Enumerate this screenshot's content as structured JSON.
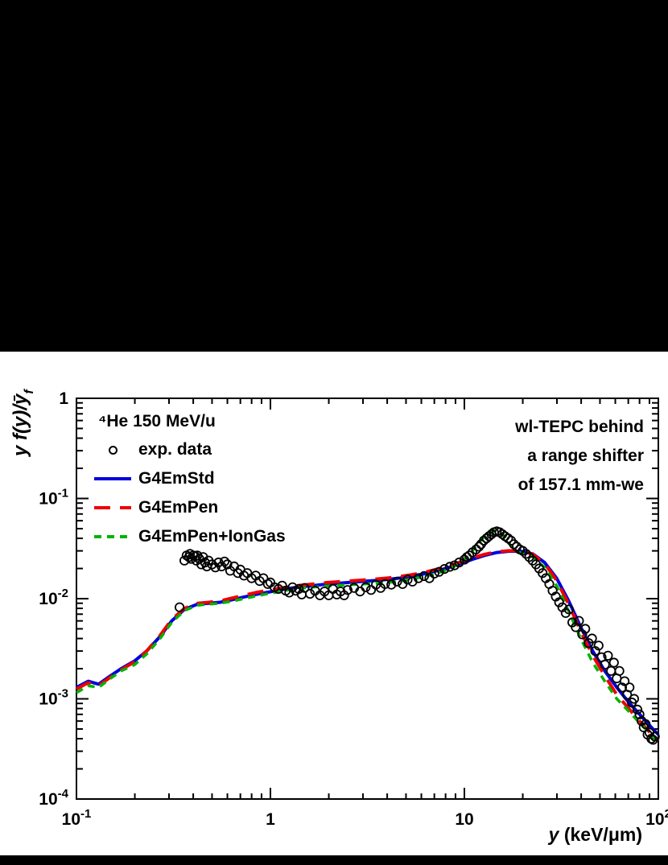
{
  "figure": {
    "background": "#000000",
    "panel_background": "#ffffff",
    "frame_color": "#000000"
  },
  "chart_data": {
    "type": "line",
    "title": "",
    "xlabel_var": "y",
    "xlabel_rest": " (keV/μm)",
    "ylabel": "y f(y)/ȳ",
    "ylabel_sub": "f",
    "xscale": "log",
    "yscale": "log",
    "xlim": [
      0.1,
      100
    ],
    "ylim": [
      0.0001,
      1
    ],
    "grid": false,
    "legend_position": "top-left-inside",
    "xticks": [
      {
        "v": 0.1,
        "label": "10^-1"
      },
      {
        "v": 1,
        "label": "1"
      },
      {
        "v": 10,
        "label": "10"
      },
      {
        "v": 100,
        "label": "10^2"
      }
    ],
    "yticks": [
      {
        "v": 1,
        "label": "1"
      },
      {
        "v": 0.1,
        "label": "10^-1"
      },
      {
        "v": 0.01,
        "label": "10^-2"
      },
      {
        "v": 0.001,
        "label": "10^-3"
      },
      {
        "v": 0.0001,
        "label": "10^-4"
      }
    ],
    "annotations": {
      "title_left": "⁴He 150 MeV/u",
      "right": [
        "wl-TEPC behind",
        "a range shifter",
        "of 157.1 mm-we"
      ]
    },
    "series": [
      {
        "name": "exp. data",
        "type": "scatter",
        "marker": "open-circle",
        "color": "#000000",
        "points": [
          [
            0.34,
            0.0082
          ],
          [
            0.36,
            0.024
          ],
          [
            0.37,
            0.027
          ],
          [
            0.38,
            0.026
          ],
          [
            0.385,
            0.028
          ],
          [
            0.39,
            0.025
          ],
          [
            0.4,
            0.027
          ],
          [
            0.41,
            0.0265
          ],
          [
            0.415,
            0.024
          ],
          [
            0.42,
            0.027
          ],
          [
            0.43,
            0.025
          ],
          [
            0.44,
            0.022
          ],
          [
            0.45,
            0.026
          ],
          [
            0.46,
            0.023
          ],
          [
            0.47,
            0.021
          ],
          [
            0.48,
            0.024
          ],
          [
            0.5,
            0.022
          ],
          [
            0.52,
            0.0205
          ],
          [
            0.54,
            0.023
          ],
          [
            0.56,
            0.021
          ],
          [
            0.58,
            0.0235
          ],
          [
            0.6,
            0.022
          ],
          [
            0.62,
            0.019
          ],
          [
            0.65,
            0.021
          ],
          [
            0.68,
            0.018
          ],
          [
            0.7,
            0.0195
          ],
          [
            0.73,
            0.017
          ],
          [
            0.76,
            0.018
          ],
          [
            0.8,
            0.016
          ],
          [
            0.84,
            0.017
          ],
          [
            0.88,
            0.015
          ],
          [
            0.92,
            0.016
          ],
          [
            0.97,
            0.014
          ],
          [
            1.0,
            0.0145
          ],
          [
            1.05,
            0.013
          ],
          [
            1.1,
            0.0125
          ],
          [
            1.15,
            0.0135
          ],
          [
            1.2,
            0.012
          ],
          [
            1.25,
            0.0115
          ],
          [
            1.3,
            0.013
          ],
          [
            1.35,
            0.012
          ],
          [
            1.4,
            0.0125
          ],
          [
            1.45,
            0.011
          ],
          [
            1.5,
            0.0128
          ],
          [
            1.6,
            0.0112
          ],
          [
            1.7,
            0.012
          ],
          [
            1.8,
            0.0108
          ],
          [
            1.9,
            0.0118
          ],
          [
            2.0,
            0.0108
          ],
          [
            2.1,
            0.0125
          ],
          [
            2.2,
            0.011
          ],
          [
            2.3,
            0.0118
          ],
          [
            2.4,
            0.0108
          ],
          [
            2.5,
            0.0122
          ],
          [
            2.7,
            0.0128
          ],
          [
            2.9,
            0.0118
          ],
          [
            3.1,
            0.013
          ],
          [
            3.3,
            0.0122
          ],
          [
            3.5,
            0.0138
          ],
          [
            3.7,
            0.0128
          ],
          [
            3.9,
            0.014
          ],
          [
            4.2,
            0.0138
          ],
          [
            4.5,
            0.0148
          ],
          [
            4.8,
            0.014
          ],
          [
            5.1,
            0.0155
          ],
          [
            5.4,
            0.0148
          ],
          [
            5.8,
            0.016
          ],
          [
            6.2,
            0.0168
          ],
          [
            6.6,
            0.016
          ],
          [
            7.0,
            0.0178
          ],
          [
            7.4,
            0.0185
          ],
          [
            7.9,
            0.0198
          ],
          [
            8.4,
            0.0208
          ],
          [
            8.9,
            0.0215
          ],
          [
            9.4,
            0.023
          ],
          [
            10.0,
            0.0245
          ],
          [
            10.3,
            0.026
          ],
          [
            10.6,
            0.027
          ],
          [
            11.0,
            0.029
          ],
          [
            11.5,
            0.031
          ],
          [
            11.9,
            0.033
          ],
          [
            12.2,
            0.035
          ],
          [
            12.6,
            0.038
          ],
          [
            13.0,
            0.04
          ],
          [
            13.4,
            0.042
          ],
          [
            13.8,
            0.044
          ],
          [
            14.2,
            0.046
          ],
          [
            14.7,
            0.047
          ],
          [
            15.2,
            0.046
          ],
          [
            15.7,
            0.044
          ],
          [
            16.2,
            0.042
          ],
          [
            16.8,
            0.04
          ],
          [
            17.4,
            0.038
          ],
          [
            18.0,
            0.035
          ],
          [
            18.6,
            0.033
          ],
          [
            19.3,
            0.031
          ],
          [
            20.0,
            0.03
          ],
          [
            20.8,
            0.028
          ],
          [
            21.6,
            0.026
          ],
          [
            22.5,
            0.024
          ],
          [
            23.4,
            0.022
          ],
          [
            24.3,
            0.02
          ],
          [
            25.3,
            0.018
          ],
          [
            26.3,
            0.016
          ],
          [
            27.4,
            0.014
          ],
          [
            28.5,
            0.012
          ],
          [
            29.6,
            0.0105
          ],
          [
            30.8,
            0.0092
          ],
          [
            32,
            0.0082
          ],
          [
            33.3,
            0.0072
          ],
          [
            34.6,
            0.0078
          ],
          [
            36,
            0.0058
          ],
          [
            37.5,
            0.0052
          ],
          [
            39,
            0.006
          ],
          [
            40.5,
            0.0044
          ],
          [
            42,
            0.005
          ],
          [
            43.7,
            0.0036
          ],
          [
            45.5,
            0.004
          ],
          [
            47.3,
            0.003
          ],
          [
            49.2,
            0.0034
          ],
          [
            51,
            0.0026
          ],
          [
            53,
            0.0022
          ],
          [
            55,
            0.0027
          ],
          [
            57,
            0.0019
          ],
          [
            59,
            0.0023
          ],
          [
            61,
            0.0016
          ],
          [
            63,
            0.0019
          ],
          [
            65,
            0.0013
          ],
          [
            67,
            0.0015
          ],
          [
            69,
            0.0011
          ],
          [
            71,
            0.0013
          ],
          [
            73,
            0.00092
          ],
          [
            75,
            0.001
          ],
          [
            78,
            0.00078
          ],
          [
            80,
            0.0007
          ],
          [
            82,
            0.0006
          ],
          [
            84,
            0.00052
          ],
          [
            86,
            0.00056
          ],
          [
            88,
            0.00044
          ],
          [
            90,
            0.00046
          ],
          [
            92,
            0.0004
          ],
          [
            94,
            0.00039
          ],
          [
            96,
            0.00042
          ]
        ]
      },
      {
        "name": "G4EmStd",
        "type": "line",
        "color": "#0000dd",
        "dash": "",
        "width": 4,
        "points": [
          [
            0.1,
            0.0013
          ],
          [
            0.115,
            0.0015
          ],
          [
            0.13,
            0.0014
          ],
          [
            0.15,
            0.0017
          ],
          [
            0.17,
            0.002
          ],
          [
            0.2,
            0.0024
          ],
          [
            0.23,
            0.003
          ],
          [
            0.27,
            0.0042
          ],
          [
            0.31,
            0.006
          ],
          [
            0.36,
            0.0078
          ],
          [
            0.42,
            0.0088
          ],
          [
            0.48,
            0.009
          ],
          [
            0.55,
            0.0092
          ],
          [
            0.63,
            0.0097
          ],
          [
            0.73,
            0.0104
          ],
          [
            0.84,
            0.011
          ],
          [
            0.97,
            0.0116
          ],
          [
            1.12,
            0.0122
          ],
          [
            1.29,
            0.0128
          ],
          [
            1.49,
            0.0132
          ],
          [
            1.72,
            0.0136
          ],
          [
            1.98,
            0.014
          ],
          [
            2.29,
            0.0143
          ],
          [
            2.64,
            0.0146
          ],
          [
            3.04,
            0.0149
          ],
          [
            3.51,
            0.0152
          ],
          [
            4.05,
            0.0156
          ],
          [
            4.67,
            0.0161
          ],
          [
            5.39,
            0.0168
          ],
          [
            6.21,
            0.0177
          ],
          [
            7.17,
            0.0189
          ],
          [
            8.27,
            0.0204
          ],
          [
            9.54,
            0.0223
          ],
          [
            11.0,
            0.0247
          ],
          [
            12.7,
            0.027
          ],
          [
            14.6,
            0.0288
          ],
          [
            16.9,
            0.0297
          ],
          [
            19.5,
            0.0298
          ],
          [
            22.5,
            0.028
          ],
          [
            25.9,
            0.023
          ],
          [
            29.9,
            0.016
          ],
          [
            34.5,
            0.0095
          ],
          [
            39.8,
            0.0052
          ],
          [
            45.9,
            0.003
          ],
          [
            52.9,
            0.0019
          ],
          [
            61.1,
            0.0013
          ],
          [
            70.4,
            0.00092
          ],
          [
            81.2,
            0.00068
          ],
          [
            93.7,
            0.0005
          ],
          [
            100,
            0.00044
          ]
        ]
      },
      {
        "name": "G4EmPen",
        "type": "line",
        "color": "#ee0000",
        "dash": "20,12",
        "width": 4,
        "points": [
          [
            0.1,
            0.00125
          ],
          [
            0.115,
            0.00145
          ],
          [
            0.13,
            0.00135
          ],
          [
            0.15,
            0.00165
          ],
          [
            0.17,
            0.00195
          ],
          [
            0.2,
            0.00235
          ],
          [
            0.23,
            0.003
          ],
          [
            0.27,
            0.0043
          ],
          [
            0.31,
            0.0062
          ],
          [
            0.36,
            0.008
          ],
          [
            0.42,
            0.009
          ],
          [
            0.48,
            0.0092
          ],
          [
            0.55,
            0.0095
          ],
          [
            0.63,
            0.0101
          ],
          [
            0.73,
            0.0108
          ],
          [
            0.84,
            0.0115
          ],
          [
            0.97,
            0.0121
          ],
          [
            1.12,
            0.0127
          ],
          [
            1.29,
            0.0133
          ],
          [
            1.49,
            0.0137
          ],
          [
            1.72,
            0.0141
          ],
          [
            1.98,
            0.0145
          ],
          [
            2.29,
            0.0148
          ],
          [
            2.64,
            0.0151
          ],
          [
            3.04,
            0.0154
          ],
          [
            3.51,
            0.0157
          ],
          [
            4.05,
            0.0161
          ],
          [
            4.67,
            0.0167
          ],
          [
            5.39,
            0.0174
          ],
          [
            6.21,
            0.0183
          ],
          [
            7.17,
            0.0196
          ],
          [
            8.27,
            0.0212
          ],
          [
            9.54,
            0.0232
          ],
          [
            11.0,
            0.0255
          ],
          [
            12.7,
            0.0277
          ],
          [
            14.6,
            0.0293
          ],
          [
            16.9,
            0.0301
          ],
          [
            19.5,
            0.03
          ],
          [
            22.5,
            0.0278
          ],
          [
            25.9,
            0.0225
          ],
          [
            29.9,
            0.0152
          ],
          [
            34.5,
            0.0088
          ],
          [
            39.8,
            0.0047
          ],
          [
            45.9,
            0.0027
          ],
          [
            52.9,
            0.0017
          ],
          [
            61.1,
            0.0011
          ],
          [
            70.4,
            0.0008
          ],
          [
            81.2,
            0.00058
          ],
          [
            93.7,
            0.00043
          ],
          [
            100,
            0.00038
          ]
        ]
      },
      {
        "name": "G4EmPen+IonGas",
        "type": "line",
        "color": "#00b300",
        "dash": "9,7",
        "width": 3.5,
        "points": [
          [
            0.1,
            0.00115
          ],
          [
            0.115,
            0.00135
          ],
          [
            0.13,
            0.0013
          ],
          [
            0.15,
            0.0016
          ],
          [
            0.17,
            0.0019
          ],
          [
            0.2,
            0.0022
          ],
          [
            0.23,
            0.0028
          ],
          [
            0.27,
            0.004
          ],
          [
            0.31,
            0.0058
          ],
          [
            0.36,
            0.0076
          ],
          [
            0.42,
            0.0086
          ],
          [
            0.48,
            0.0088
          ],
          [
            0.55,
            0.009
          ],
          [
            0.63,
            0.0094
          ],
          [
            0.73,
            0.01
          ],
          [
            0.84,
            0.0106
          ],
          [
            0.97,
            0.0112
          ],
          [
            1.12,
            0.0118
          ],
          [
            1.29,
            0.0124
          ],
          [
            1.49,
            0.0128
          ],
          [
            1.72,
            0.0131
          ],
          [
            1.98,
            0.0134
          ],
          [
            2.29,
            0.0136
          ],
          [
            2.64,
            0.0138
          ],
          [
            3.04,
            0.014
          ],
          [
            3.51,
            0.0142
          ],
          [
            4.05,
            0.0145
          ],
          [
            4.67,
            0.015
          ],
          [
            5.39,
            0.0157
          ],
          [
            6.21,
            0.0166
          ],
          [
            7.17,
            0.0178
          ],
          [
            8.27,
            0.0196
          ],
          [
            9.54,
            0.0226
          ],
          [
            11.0,
            0.03
          ],
          [
            12.7,
            0.042
          ],
          [
            14.1,
            0.048
          ],
          [
            15.8,
            0.043
          ],
          [
            17.5,
            0.033
          ],
          [
            19.5,
            0.0285
          ],
          [
            22.5,
            0.0262
          ],
          [
            25.9,
            0.0205
          ],
          [
            29.9,
            0.0135
          ],
          [
            34.5,
            0.0075
          ],
          [
            39.8,
            0.004
          ],
          [
            45.9,
            0.0023
          ],
          [
            52.9,
            0.0015
          ],
          [
            61.1,
            0.001
          ],
          [
            70.4,
            0.00075
          ],
          [
            81.2,
            0.00056
          ],
          [
            93.7,
            0.00042
          ],
          [
            100,
            0.00037
          ]
        ]
      }
    ]
  }
}
